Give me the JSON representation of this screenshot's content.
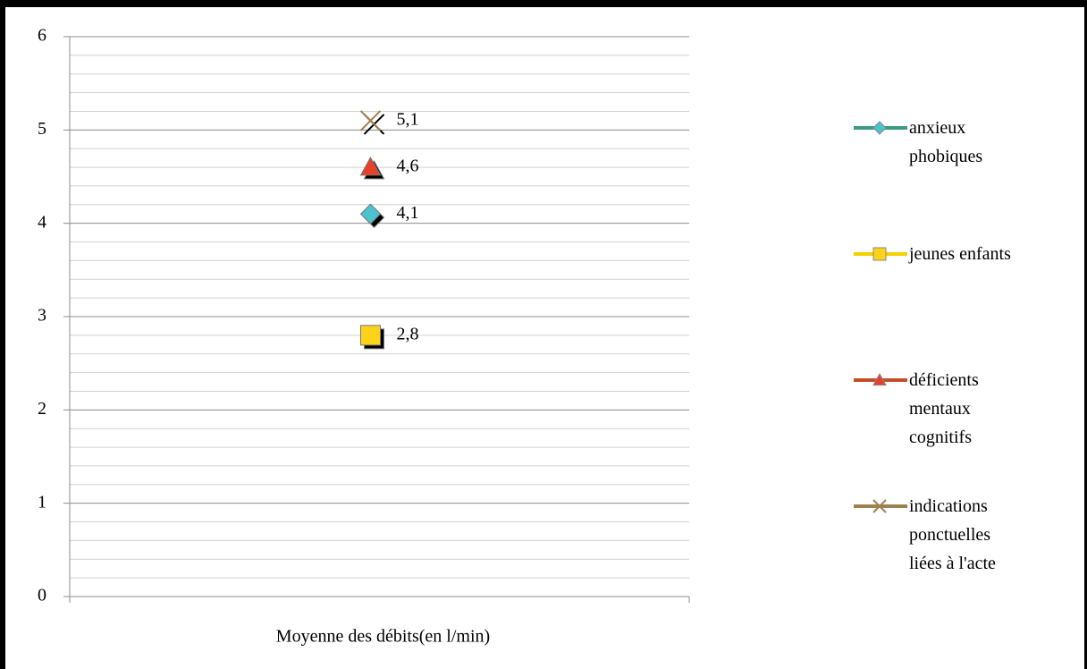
{
  "chart_data": {
    "type": "line",
    "categories": [
      "Moyenne des débits(en l/min)"
    ],
    "series": [
      {
        "name": "anxieux phobiques",
        "color": "#3a9a82",
        "marker_color": "#4bc3d0",
        "marker": "diamond",
        "values": [
          4.1
        ],
        "value_labels": [
          "4,1"
        ]
      },
      {
        "name": "jeunes enfants",
        "color": "#f5d000",
        "marker_color": "#ffd21a",
        "marker": "square",
        "values": [
          2.8
        ],
        "value_labels": [
          "2,8"
        ]
      },
      {
        "name": "déficients mentaux cognitifs",
        "color": "#c0502a",
        "marker_color": "#e8402a",
        "marker": "triangle",
        "values": [
          4.6
        ],
        "value_labels": [
          "4,6"
        ]
      },
      {
        "name": "indications ponctuelles liées à l'acte",
        "color": "#a08050",
        "marker_color": "#a08050",
        "marker": "x",
        "values": [
          5.1
        ],
        "value_labels": [
          "5,1"
        ]
      }
    ],
    "ylim": [
      0,
      6
    ],
    "yticks": [
      0,
      1,
      2,
      3,
      4,
      5,
      6
    ],
    "yminorticks": [
      0.2,
      0.4,
      0.6,
      0.8,
      1.2,
      1.4,
      1.6,
      1.8,
      2.2,
      2.4,
      2.6,
      2.8,
      3.2,
      3.4,
      3.6,
      3.8,
      4.2,
      4.4,
      4.6,
      4.8,
      5.2,
      5.4,
      5.6,
      5.8
    ],
    "grid": true,
    "legend": "right"
  }
}
